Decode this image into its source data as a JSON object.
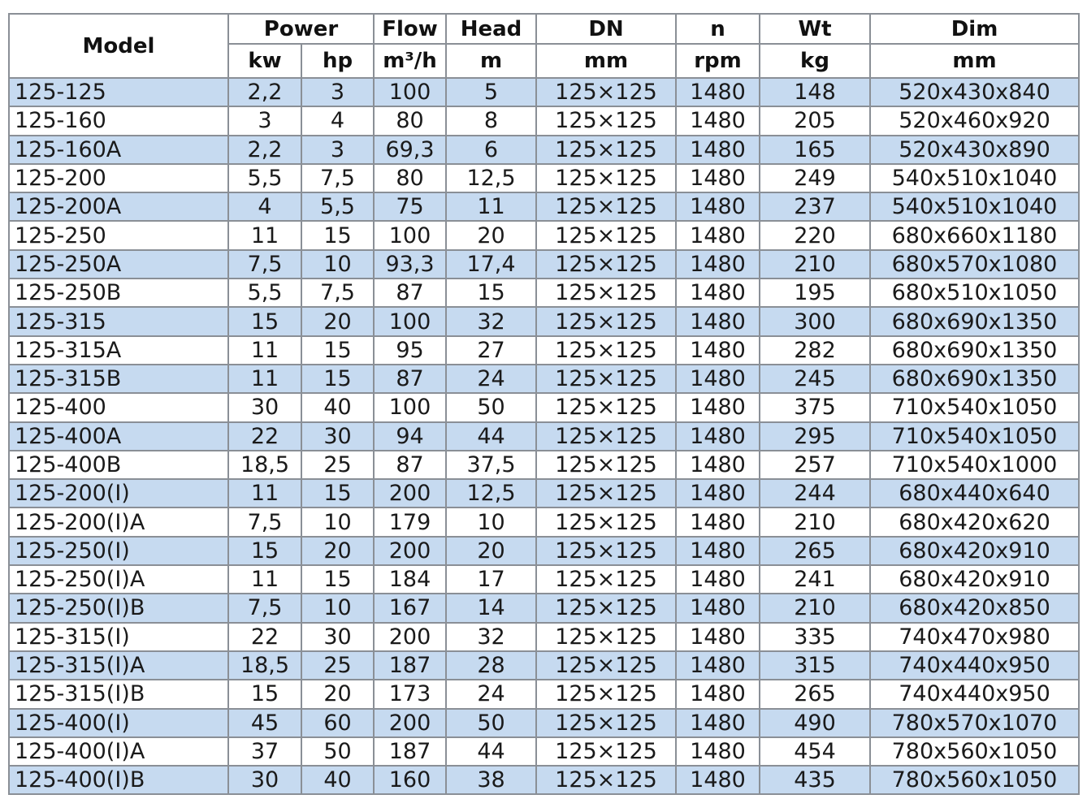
{
  "header": {
    "groups": [
      "Model",
      "Power",
      "Flow",
      "Head",
      "DN",
      "n",
      "Wt",
      "Dim"
    ],
    "units": [
      "kw",
      "hp",
      "m³/h",
      "m",
      "mm",
      "rpm",
      "kg",
      "mm"
    ]
  },
  "colors": {
    "stripe": "#c6daf0",
    "border": "#8a8f96"
  },
  "rows": [
    [
      "125-125",
      "2,2",
      "3",
      "100",
      "5",
      "125×125",
      "1480",
      "148",
      "520x430x840"
    ],
    [
      "125-160",
      "3",
      "4",
      "80",
      "8",
      "125×125",
      "1480",
      "205",
      "520x460x920"
    ],
    [
      "125-160A",
      "2,2",
      "3",
      "69,3",
      "6",
      "125×125",
      "1480",
      "165",
      "520x430x890"
    ],
    [
      "125-200",
      "5,5",
      "7,5",
      "80",
      "12,5",
      "125×125",
      "1480",
      "249",
      "540x510x1040"
    ],
    [
      "125-200A",
      "4",
      "5,5",
      "75",
      "11",
      "125×125",
      "1480",
      "237",
      "540x510x1040"
    ],
    [
      "125-250",
      "11",
      "15",
      "100",
      "20",
      "125×125",
      "1480",
      "220",
      "680x660x1180"
    ],
    [
      "125-250A",
      "7,5",
      "10",
      "93,3",
      "17,4",
      "125×125",
      "1480",
      "210",
      "680x570x1080"
    ],
    [
      "125-250B",
      "5,5",
      "7,5",
      "87",
      "15",
      "125×125",
      "1480",
      "195",
      "680x510x1050"
    ],
    [
      "125-315",
      "15",
      "20",
      "100",
      "32",
      "125×125",
      "1480",
      "300",
      "680x690x1350"
    ],
    [
      "125-315A",
      "11",
      "15",
      "95",
      "27",
      "125×125",
      "1480",
      "282",
      "680x690x1350"
    ],
    [
      "125-315B",
      "11",
      "15",
      "87",
      "24",
      "125×125",
      "1480",
      "245",
      "680x690x1350"
    ],
    [
      "125-400",
      "30",
      "40",
      "100",
      "50",
      "125×125",
      "1480",
      "375",
      "710x540x1050"
    ],
    [
      "125-400A",
      "22",
      "30",
      "94",
      "44",
      "125×125",
      "1480",
      "295",
      "710x540x1050"
    ],
    [
      "125-400B",
      "18,5",
      "25",
      "87",
      "37,5",
      "125×125",
      "1480",
      "257",
      "710x540x1000"
    ],
    [
      "125-200(I)",
      "11",
      "15",
      "200",
      "12,5",
      "125×125",
      "1480",
      "244",
      "680x440x640"
    ],
    [
      "125-200(I)A",
      "7,5",
      "10",
      "179",
      "10",
      "125×125",
      "1480",
      "210",
      "680x420x620"
    ],
    [
      "125-250(I)",
      "15",
      "20",
      "200",
      "20",
      "125×125",
      "1480",
      "265",
      "680x420x910"
    ],
    [
      "125-250(I)A",
      "11",
      "15",
      "184",
      "17",
      "125×125",
      "1480",
      "241",
      "680x420x910"
    ],
    [
      "125-250(I)B",
      "7,5",
      "10",
      "167",
      "14",
      "125×125",
      "1480",
      "210",
      "680x420x850"
    ],
    [
      "125-315(I)",
      "22",
      "30",
      "200",
      "32",
      "125×125",
      "1480",
      "335",
      "740x470x980"
    ],
    [
      "125-315(I)A",
      "18,5",
      "25",
      "187",
      "28",
      "125×125",
      "1480",
      "315",
      "740x440x950"
    ],
    [
      "125-315(I)B",
      "15",
      "20",
      "173",
      "24",
      "125×125",
      "1480",
      "265",
      "740x440x950"
    ],
    [
      "125-400(I)",
      "45",
      "60",
      "200",
      "50",
      "125×125",
      "1480",
      "490",
      "780x570x1070"
    ],
    [
      "125-400(I)A",
      "37",
      "50",
      "187",
      "44",
      "125×125",
      "1480",
      "454",
      "780x560x1050"
    ],
    [
      "125-400(I)B",
      "30",
      "40",
      "160",
      "38",
      "125×125",
      "1480",
      "435",
      "780x560x1050"
    ]
  ]
}
